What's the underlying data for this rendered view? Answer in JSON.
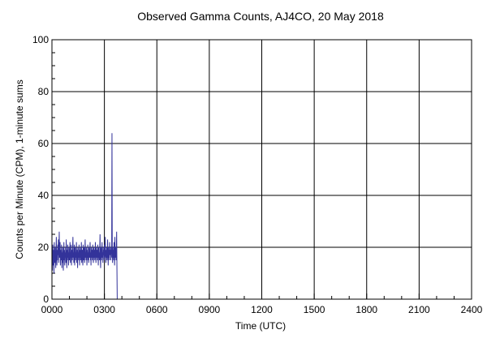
{
  "chart_data": {
    "type": "line",
    "title": "Observed Gamma Counts, AJ4CO, 20 May 2018",
    "xlabel": "Time (UTC)",
    "ylabel": "Counts per Minute (CPM), 1-minute sums",
    "xlim": [
      0,
      1440
    ],
    "ylim": [
      0,
      100
    ],
    "x_ticks": [
      {
        "value": 0,
        "label": "0000"
      },
      {
        "value": 180,
        "label": "0300"
      },
      {
        "value": 360,
        "label": "0600"
      },
      {
        "value": 540,
        "label": "0900"
      },
      {
        "value": 720,
        "label": "1200"
      },
      {
        "value": 900,
        "label": "1500"
      },
      {
        "value": 1080,
        "label": "1800"
      },
      {
        "value": 1260,
        "label": "2100"
      },
      {
        "value": 1440,
        "label": "2400"
      }
    ],
    "y_ticks": [
      {
        "value": 0,
        "label": "0"
      },
      {
        "value": 20,
        "label": "20"
      },
      {
        "value": 40,
        "label": "40"
      },
      {
        "value": 60,
        "label": "60"
      },
      {
        "value": 80,
        "label": "80"
      },
      {
        "value": 100,
        "label": "100"
      }
    ],
    "grid": true,
    "legend": "none",
    "series": [
      {
        "color": "#33339a",
        "x": [
          0,
          1,
          2,
          3,
          4,
          5,
          6,
          7,
          8,
          9,
          10,
          11,
          12,
          13,
          14,
          15,
          16,
          17,
          18,
          19,
          20,
          21,
          22,
          23,
          24,
          25,
          26,
          27,
          28,
          29,
          30,
          31,
          32,
          33,
          34,
          35,
          36,
          37,
          38,
          39,
          40,
          41,
          42,
          43,
          44,
          45,
          46,
          47,
          48,
          49,
          50,
          51,
          52,
          53,
          54,
          55,
          56,
          57,
          58,
          59,
          60,
          61,
          62,
          63,
          64,
          65,
          66,
          67,
          68,
          69,
          70,
          71,
          72,
          73,
          74,
          75,
          76,
          77,
          78,
          79,
          80,
          81,
          82,
          83,
          84,
          85,
          86,
          87,
          88,
          89,
          90,
          91,
          92,
          93,
          94,
          95,
          96,
          97,
          98,
          99,
          100,
          101,
          102,
          103,
          104,
          105,
          106,
          107,
          108,
          109,
          110,
          111,
          112,
          113,
          114,
          115,
          116,
          117,
          118,
          119,
          120,
          121,
          122,
          123,
          124,
          125,
          126,
          127,
          128,
          129,
          130,
          131,
          132,
          133,
          134,
          135,
          136,
          137,
          138,
          139,
          140,
          141,
          142,
          143,
          144,
          145,
          146,
          147,
          148,
          149,
          150,
          151,
          152,
          153,
          154,
          155,
          156,
          157,
          158,
          159,
          160,
          161,
          162,
          163,
          164,
          165,
          166,
          167,
          168,
          169,
          170,
          171,
          172,
          173,
          174,
          175,
          176,
          177,
          178,
          179,
          180,
          181,
          182,
          183,
          184,
          185,
          186,
          187,
          188,
          189,
          190,
          191,
          192,
          193,
          194,
          195,
          196,
          197,
          198,
          199,
          200,
          201,
          202,
          203,
          204,
          205,
          206,
          207,
          208,
          209,
          210,
          211,
          212,
          213,
          214,
          215,
          216,
          217,
          218,
          219,
          220,
          221,
          222,
          223,
          224
        ],
        "values": [
          14,
          18,
          11,
          21,
          16,
          13,
          19,
          10,
          22,
          17,
          14,
          20,
          15,
          12,
          18,
          24,
          16,
          13,
          19,
          15,
          21,
          17,
          23,
          14,
          20,
          26,
          16,
          18,
          22,
          13,
          19,
          15,
          17,
          21,
          12,
          18,
          14,
          20,
          16,
          11,
          17,
          22,
          15,
          19,
          13,
          18,
          16,
          20,
          14,
          23,
          17,
          12,
          19,
          15,
          21,
          16,
          18,
          13,
          20,
          17,
          15,
          19,
          22,
          14,
          18,
          16,
          21,
          13,
          17,
          19,
          15,
          20,
          24,
          16,
          18,
          14,
          19,
          21,
          13,
          17,
          20,
          15,
          18,
          16,
          22,
          14,
          19,
          17,
          12,
          20,
          16,
          18,
          15,
          21,
          17,
          13,
          19,
          16,
          20,
          15,
          18,
          22,
          14,
          17,
          19,
          16,
          13,
          21,
          18,
          15,
          20,
          17,
          14,
          19,
          23,
          16,
          18,
          15,
          20,
          17,
          13,
          19,
          16,
          21,
          15,
          18,
          14,
          20,
          17,
          16,
          19,
          22,
          15,
          18,
          13,
          20,
          17,
          16,
          19,
          15,
          21,
          18,
          14,
          17,
          20,
          16,
          19,
          15,
          18,
          22,
          17,
          14,
          20,
          16,
          19,
          18,
          15,
          21,
          17,
          13,
          20,
          16,
          18,
          15,
          19,
          25,
          16,
          12,
          20,
          17,
          15,
          19,
          22,
          16,
          18,
          14,
          20,
          17,
          19,
          15,
          21,
          16,
          18,
          24,
          17,
          14,
          19,
          16,
          20,
          15,
          18,
          23,
          17,
          13,
          20,
          16,
          19,
          15,
          22,
          18,
          17,
          20,
          15,
          19,
          16,
          21,
          64,
          18,
          14,
          20,
          16,
          19,
          15,
          22,
          17,
          13,
          24,
          18,
          16,
          20,
          15,
          19,
          26,
          12,
          0
        ]
      }
    ]
  }
}
